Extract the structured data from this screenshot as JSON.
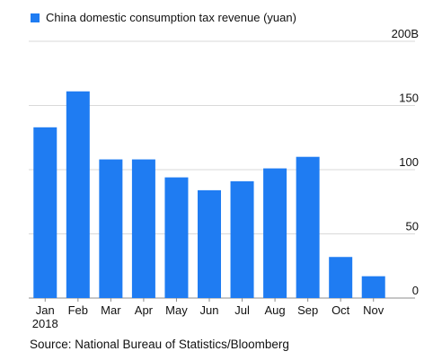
{
  "chart_data": {
    "type": "bar",
    "series": [
      {
        "name": "China domestic consumption tax revenue (yuan)",
        "values": [
          133,
          161,
          108,
          108,
          94,
          84,
          91,
          101,
          110,
          32,
          17
        ]
      }
    ],
    "categories": [
      "Jan 2018",
      "Feb",
      "Mar",
      "Apr",
      "May",
      "Jun",
      "Jul",
      "Aug",
      "Sep",
      "Oct",
      "Nov"
    ],
    "category_lines": [
      [
        "Jan",
        "2018"
      ],
      [
        "Feb"
      ],
      [
        "Mar"
      ],
      [
        "Apr"
      ],
      [
        "May"
      ],
      [
        "Jun"
      ],
      [
        "Jul"
      ],
      [
        "Aug"
      ],
      [
        "Sep"
      ],
      [
        "Oct"
      ],
      [
        "Nov"
      ]
    ],
    "y_ticks": [
      0,
      50,
      100,
      150,
      200
    ],
    "y_tick_labels": [
      "0",
      "50",
      "100",
      "150",
      "200B"
    ],
    "ylim": [
      0,
      200
    ],
    "grid": true,
    "legend_position": "top-left",
    "bar_color": "#1f7cf2"
  },
  "source": "Source: National Bureau of Statistics/Bloomberg"
}
